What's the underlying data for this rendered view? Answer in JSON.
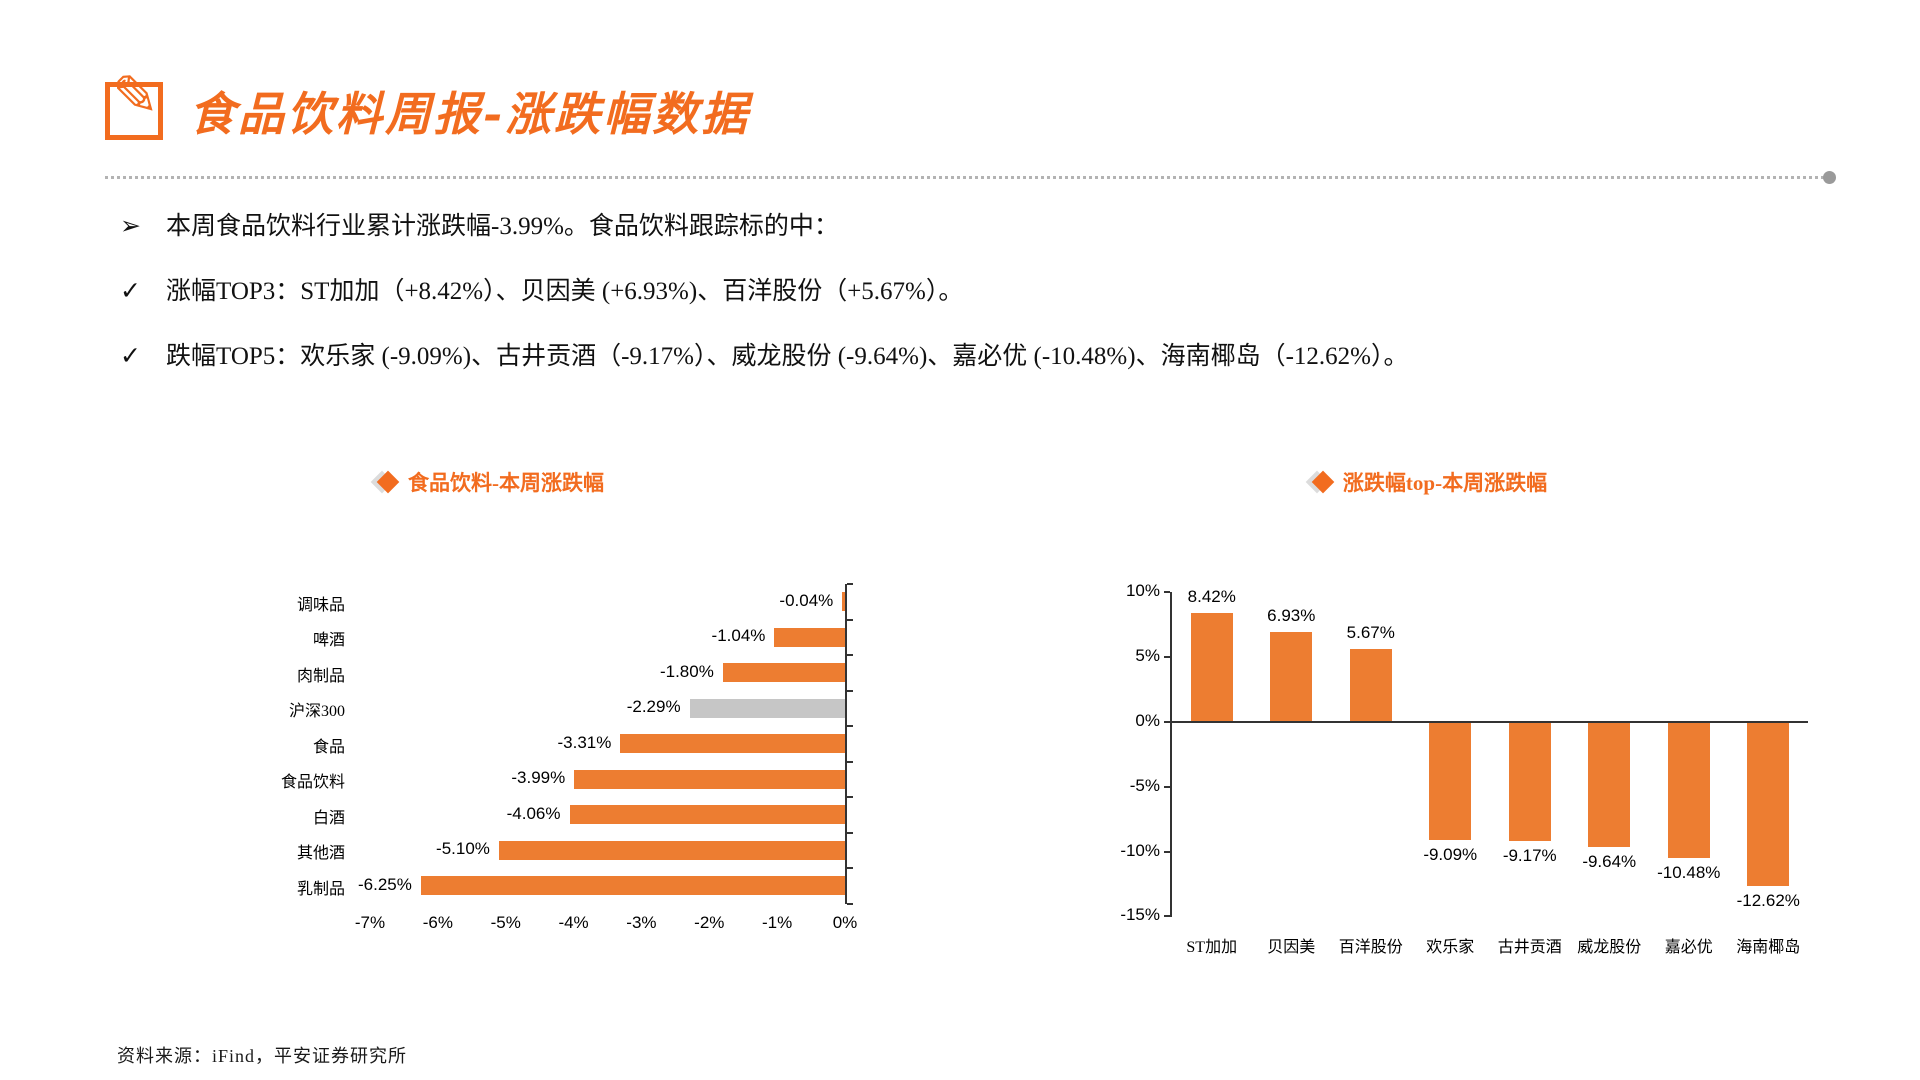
{
  "page": {
    "title": "食品饮料周报-涨跌幅数据",
    "source": "资料来源：iFind，平安证券研究所"
  },
  "bullets": [
    {
      "marker": "➢",
      "text": "本周食品饮料行业累计涨跌幅-3.99%。食品饮料跟踪标的中："
    },
    {
      "marker": "✓",
      "text": "涨幅TOP3：ST加加（+8.42%）、贝因美 (+6.93%)、百洋股份（+5.67%）。"
    },
    {
      "marker": "✓",
      "text": "跌幅TOP5：欢乐家 (-9.09%)、古井贡酒（-9.17%）、威龙股份 (-9.64%)、嘉必优 (-10.48%)、海南椰岛（-12.62%）。"
    }
  ],
  "colors": {
    "accent": "#F26C1F",
    "bar_orange": "#ED7D31",
    "bar_gray": "#C6C6C6"
  },
  "chart_data": [
    {
      "type": "bar",
      "orientation": "horizontal",
      "title": "食品饮料-本周涨跌幅",
      "categories": [
        "调味品",
        "啤酒",
        "肉制品",
        "沪深300",
        "食品",
        "食品饮料",
        "白酒",
        "其他酒",
        "乳制品"
      ],
      "values": [
        -0.04,
        -1.04,
        -1.8,
        -2.29,
        -3.31,
        -3.99,
        -4.06,
        -5.1,
        -6.25
      ],
      "labels": [
        "-0.04%",
        "-1.04%",
        "-1.80%",
        "-2.29%",
        "-3.31%",
        "-3.99%",
        "-4.06%",
        "-5.10%",
        "-6.25%"
      ],
      "highlight_gray_index": 3,
      "xlim": [
        -7,
        0
      ],
      "x_ticks": [
        "-7%",
        "-6%",
        "-5%",
        "-4%",
        "-3%",
        "-2%",
        "-1%",
        "0%"
      ],
      "grid": false,
      "legend_position": "top"
    },
    {
      "type": "bar",
      "orientation": "vertical",
      "title": "涨跌幅top-本周涨跌幅",
      "categories": [
        "ST加加",
        "贝因美",
        "百洋股份",
        "欢乐家",
        "古井贡酒",
        "威龙股份",
        "嘉必优",
        "海南椰岛"
      ],
      "values": [
        8.42,
        6.93,
        5.67,
        -9.09,
        -9.17,
        -9.64,
        -10.48,
        -12.62
      ],
      "labels": [
        "8.42%",
        "6.93%",
        "5.67%",
        "-9.09%",
        "-9.17%",
        "-9.64%",
        "-10.48%",
        "-12.62%"
      ],
      "ylim": [
        -15,
        10
      ],
      "y_ticks": [
        "10%",
        "5%",
        "0%",
        "-5%",
        "-10%",
        "-15%"
      ],
      "grid": false,
      "legend_position": "top"
    }
  ]
}
